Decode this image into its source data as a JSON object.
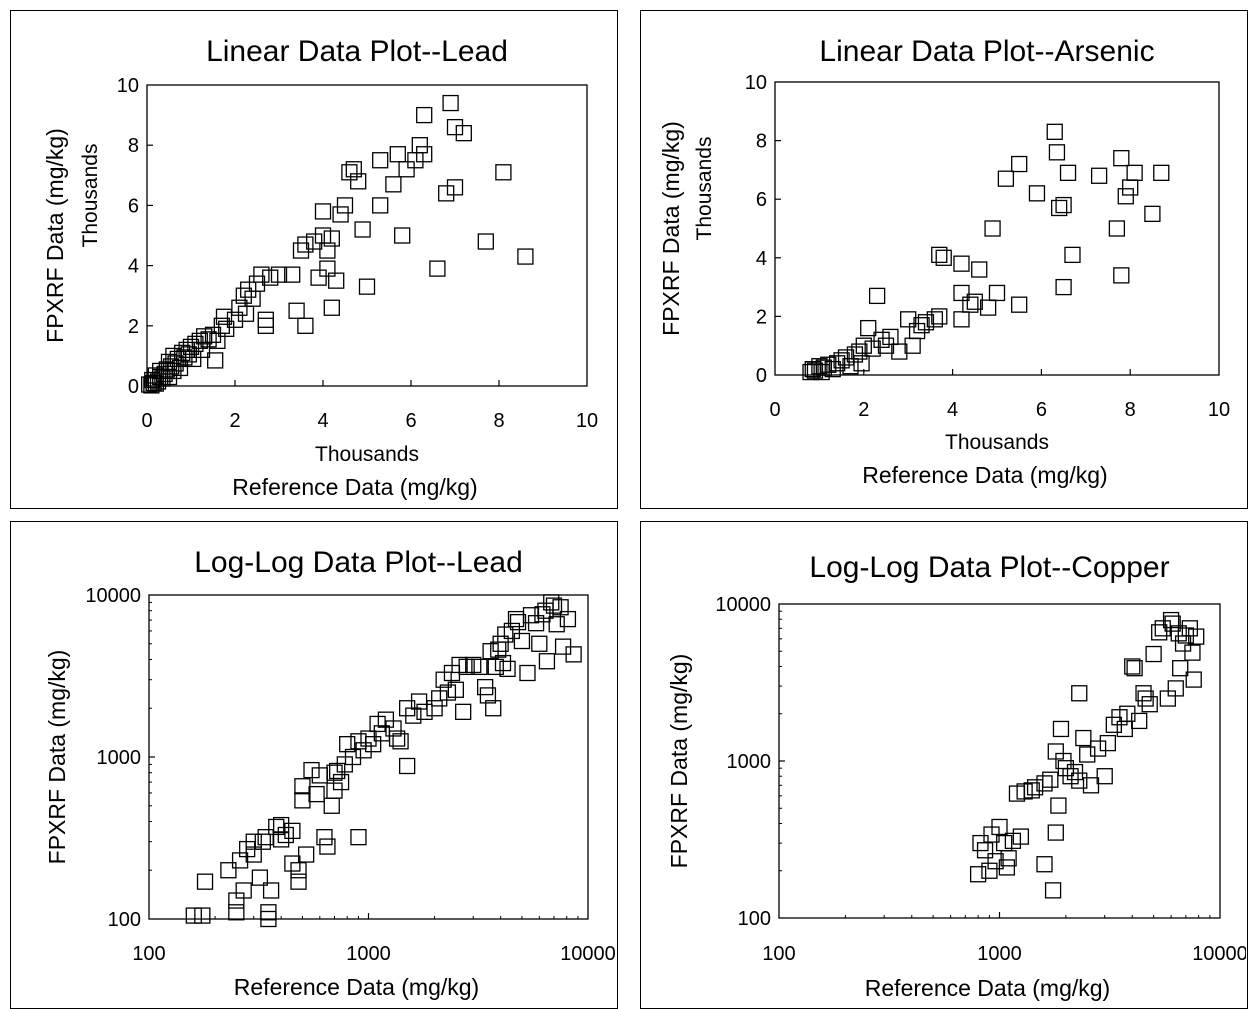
{
  "chart_data": [
    {
      "type": "scatter",
      "title": "Linear Data Plot--Lead",
      "xlabel": "Reference Data (mg/kg)",
      "xunit": "Thousands",
      "ylabel": "FPXRF Data (mg/kg)",
      "yunit": "Thousands",
      "xscale": "linear",
      "yscale": "linear",
      "xlim": [
        0,
        10
      ],
      "ylim": [
        0,
        10
      ],
      "xticks": [
        "0",
        "2",
        "4",
        "6",
        "8",
        "10"
      ],
      "yticks": [
        "0",
        "2",
        "4",
        "6",
        "8",
        "10"
      ],
      "marker": "open-square",
      "grid": false,
      "points": [
        [
          0.05,
          0.05
        ],
        [
          0.1,
          0.02
        ],
        [
          0.15,
          0.1
        ],
        [
          0.2,
          0.08
        ],
        [
          0.12,
          0.2
        ],
        [
          0.25,
          0.15
        ],
        [
          0.3,
          0.3
        ],
        [
          0.2,
          0.35
        ],
        [
          0.35,
          0.25
        ],
        [
          0.4,
          0.4
        ],
        [
          0.3,
          0.5
        ],
        [
          0.45,
          0.55
        ],
        [
          0.5,
          0.3
        ],
        [
          0.55,
          0.65
        ],
        [
          0.6,
          0.5
        ],
        [
          0.5,
          0.8
        ],
        [
          0.65,
          0.75
        ],
        [
          0.7,
          0.9
        ],
        [
          0.6,
          1.0
        ],
        [
          0.75,
          0.6
        ],
        [
          0.8,
          1.1
        ],
        [
          0.85,
          0.95
        ],
        [
          0.9,
          1.2
        ],
        [
          0.95,
          1.05
        ],
        [
          1.0,
          1.3
        ],
        [
          1.05,
          0.9
        ],
        [
          1.1,
          1.4
        ],
        [
          1.2,
          1.5
        ],
        [
          1.25,
          1.2
        ],
        [
          1.3,
          1.65
        ],
        [
          1.4,
          1.55
        ],
        [
          1.5,
          1.7
        ],
        [
          1.55,
          0.85
        ],
        [
          1.6,
          1.5
        ],
        [
          1.7,
          2.0
        ],
        [
          1.75,
          2.3
        ],
        [
          1.8,
          1.9
        ],
        [
          2.0,
          2.2
        ],
        [
          2.1,
          2.6
        ],
        [
          2.2,
          3.0
        ],
        [
          2.25,
          2.4
        ],
        [
          2.3,
          3.2
        ],
        [
          2.4,
          2.9
        ],
        [
          2.5,
          3.4
        ],
        [
          2.6,
          3.7
        ],
        [
          2.7,
          2.0
        ],
        [
          2.7,
          2.2
        ],
        [
          2.8,
          3.6
        ],
        [
          3.0,
          3.7
        ],
        [
          3.3,
          3.7
        ],
        [
          3.4,
          2.5
        ],
        [
          3.5,
          4.5
        ],
        [
          3.6,
          4.7
        ],
        [
          3.6,
          2.0
        ],
        [
          3.8,
          4.8
        ],
        [
          3.9,
          3.6
        ],
        [
          4.0,
          5.0
        ],
        [
          4.0,
          5.8
        ],
        [
          4.1,
          4.5
        ],
        [
          4.1,
          3.9
        ],
        [
          4.2,
          4.9
        ],
        [
          4.2,
          2.6
        ],
        [
          4.3,
          3.5
        ],
        [
          4.4,
          5.7
        ],
        [
          4.5,
          6.0
        ],
        [
          4.6,
          7.1
        ],
        [
          4.7,
          7.2
        ],
        [
          4.8,
          6.8
        ],
        [
          4.9,
          5.2
        ],
        [
          5.0,
          3.3
        ],
        [
          5.3,
          7.5
        ],
        [
          5.3,
          6.0
        ],
        [
          5.6,
          6.7
        ],
        [
          5.7,
          7.7
        ],
        [
          5.8,
          5.0
        ],
        [
          5.9,
          7.2
        ],
        [
          6.1,
          7.5
        ],
        [
          6.2,
          8.0
        ],
        [
          6.3,
          7.7
        ],
        [
          6.3,
          9.0
        ],
        [
          6.6,
          3.9
        ],
        [
          6.8,
          6.4
        ],
        [
          6.9,
          9.4
        ],
        [
          7.0,
          8.6
        ],
        [
          7.0,
          6.6
        ],
        [
          7.2,
          8.4
        ],
        [
          7.7,
          4.8
        ],
        [
          8.1,
          7.1
        ],
        [
          8.6,
          4.3
        ]
      ]
    },
    {
      "type": "scatter",
      "title": "Linear Data Plot--Arsenic",
      "xlabel": "Reference Data (mg/kg)",
      "xunit": "Thousands",
      "ylabel": "FPXRF Data (mg/kg)",
      "yunit": "Thousands",
      "xscale": "linear",
      "yscale": "linear",
      "xlim": [
        0,
        10
      ],
      "ylim": [
        0,
        10
      ],
      "xticks": [
        "0",
        "2",
        "4",
        "6",
        "8",
        "10"
      ],
      "yticks": [
        "0",
        "2",
        "4",
        "6",
        "8",
        "10"
      ],
      "marker": "open-square",
      "grid": false,
      "points": [
        [
          0.8,
          0.1
        ],
        [
          0.85,
          0.2
        ],
        [
          0.9,
          0.15
        ],
        [
          1.0,
          0.3
        ],
        [
          1.05,
          0.1
        ],
        [
          1.1,
          0.25
        ],
        [
          1.2,
          0.35
        ],
        [
          1.3,
          0.2
        ],
        [
          1.4,
          0.4
        ],
        [
          1.5,
          0.5
        ],
        [
          1.6,
          0.6
        ],
        [
          1.7,
          0.3
        ],
        [
          1.8,
          0.7
        ],
        [
          1.9,
          0.8
        ],
        [
          1.95,
          0.4
        ],
        [
          2.0,
          1.0
        ],
        [
          2.1,
          1.6
        ],
        [
          2.2,
          0.9
        ],
        [
          2.3,
          2.7
        ],
        [
          2.4,
          1.2
        ],
        [
          2.5,
          1.0
        ],
        [
          2.6,
          1.3
        ],
        [
          2.8,
          0.8
        ],
        [
          3.0,
          1.9
        ],
        [
          3.1,
          1.0
        ],
        [
          3.2,
          1.5
        ],
        [
          3.3,
          1.7
        ],
        [
          3.4,
          1.8
        ],
        [
          3.6,
          1.9
        ],
        [
          3.7,
          2.0
        ],
        [
          3.7,
          4.1
        ],
        [
          3.8,
          4.0
        ],
        [
          4.2,
          1.9
        ],
        [
          4.2,
          2.8
        ],
        [
          4.2,
          3.8
        ],
        [
          4.4,
          2.4
        ],
        [
          4.5,
          2.5
        ],
        [
          4.6,
          3.6
        ],
        [
          4.8,
          2.3
        ],
        [
          4.9,
          5.0
        ],
        [
          5.0,
          2.8
        ],
        [
          5.2,
          6.7
        ],
        [
          5.5,
          7.2
        ],
        [
          5.5,
          2.4
        ],
        [
          5.9,
          6.2
        ],
        [
          6.3,
          8.3
        ],
        [
          6.35,
          7.6
        ],
        [
          6.4,
          5.7
        ],
        [
          6.5,
          5.8
        ],
        [
          6.5,
          3.0
        ],
        [
          6.6,
          6.9
        ],
        [
          6.7,
          4.1
        ],
        [
          7.3,
          6.8
        ],
        [
          7.7,
          5.0
        ],
        [
          7.8,
          3.4
        ],
        [
          7.8,
          7.4
        ],
        [
          7.9,
          6.1
        ],
        [
          8.0,
          6.4
        ],
        [
          8.1,
          6.9
        ],
        [
          8.5,
          5.5
        ],
        [
          8.7,
          6.9
        ]
      ]
    },
    {
      "type": "scatter",
      "title": "Log-Log Data Plot--Lead",
      "xlabel": "Reference Data (mg/kg)",
      "ylabel": "FPXRF Data (mg/kg)",
      "xscale": "log",
      "yscale": "log",
      "xlim": [
        100,
        10000
      ],
      "ylim": [
        100,
        10000
      ],
      "xticks": [
        "100",
        "1000",
        "10000"
      ],
      "yticks": [
        "100",
        "1000",
        "10000"
      ],
      "marker": "open-square",
      "grid": false,
      "points": [
        [
          160,
          105
        ],
        [
          175,
          105
        ],
        [
          180,
          170
        ],
        [
          230,
          200
        ],
        [
          250,
          130
        ],
        [
          250,
          110
        ],
        [
          260,
          230
        ],
        [
          270,
          150
        ],
        [
          280,
          270
        ],
        [
          300,
          250
        ],
        [
          300,
          300
        ],
        [
          320,
          180
        ],
        [
          330,
          300
        ],
        [
          340,
          320
        ],
        [
          350,
          100
        ],
        [
          350,
          110
        ],
        [
          360,
          150
        ],
        [
          380,
          370
        ],
        [
          400,
          310
        ],
        [
          400,
          380
        ],
        [
          420,
          330
        ],
        [
          450,
          220
        ],
        [
          450,
          350
        ],
        [
          480,
          170
        ],
        [
          480,
          200
        ],
        [
          500,
          540
        ],
        [
          500,
          660
        ],
        [
          520,
          250
        ],
        [
          550,
          830
        ],
        [
          580,
          590
        ],
        [
          600,
          770
        ],
        [
          630,
          320
        ],
        [
          650,
          280
        ],
        [
          680,
          500
        ],
        [
          700,
          620
        ],
        [
          700,
          800
        ],
        [
          720,
          820
        ],
        [
          750,
          700
        ],
        [
          780,
          900
        ],
        [
          800,
          1200
        ],
        [
          850,
          1000
        ],
        [
          900,
          1250
        ],
        [
          900,
          320
        ],
        [
          950,
          1100
        ],
        [
          1000,
          1300
        ],
        [
          1050,
          1200
        ],
        [
          1100,
          1600
        ],
        [
          1150,
          1400
        ],
        [
          1200,
          1700
        ],
        [
          1300,
          1500
        ],
        [
          1350,
          1300
        ],
        [
          1400,
          1250
        ],
        [
          1500,
          2000
        ],
        [
          1500,
          880
        ],
        [
          1600,
          1800
        ],
        [
          1700,
          2200
        ],
        [
          1800,
          1900
        ],
        [
          2000,
          2000
        ],
        [
          2100,
          2300
        ],
        [
          2200,
          3000
        ],
        [
          2300,
          2500
        ],
        [
          2400,
          3300
        ],
        [
          2500,
          2600
        ],
        [
          2600,
          3700
        ],
        [
          2700,
          1900
        ],
        [
          2800,
          3600
        ],
        [
          3000,
          3700
        ],
        [
          3200,
          3600
        ],
        [
          3400,
          2700
        ],
        [
          3500,
          2400
        ],
        [
          3600,
          4500
        ],
        [
          3700,
          2000
        ],
        [
          3800,
          3600
        ],
        [
          3900,
          4600
        ],
        [
          4000,
          5000
        ],
        [
          4100,
          3800
        ],
        [
          4200,
          5700
        ],
        [
          4300,
          3500
        ],
        [
          4500,
          6000
        ],
        [
          4700,
          7100
        ],
        [
          4800,
          6800
        ],
        [
          5000,
          5200
        ],
        [
          5300,
          3300
        ],
        [
          5500,
          7500
        ],
        [
          5800,
          6700
        ],
        [
          6000,
          5000
        ],
        [
          6200,
          7600
        ],
        [
          6400,
          8000
        ],
        [
          6500,
          3900
        ],
        [
          6800,
          9000
        ],
        [
          7000,
          8600
        ],
        [
          7200,
          6600
        ],
        [
          7500,
          8400
        ],
        [
          7700,
          4800
        ],
        [
          8100,
          7100
        ],
        [
          8600,
          4300
        ]
      ]
    },
    {
      "type": "scatter",
      "title": "Log-Log Data Plot--Copper",
      "xlabel": "Reference Data (mg/kg)",
      "ylabel": "FPXRF Data (mg/kg)",
      "xscale": "log",
      "yscale": "log",
      "xlim": [
        100,
        10000
      ],
      "ylim": [
        100,
        10000
      ],
      "xticks": [
        "100",
        "1000",
        "10000"
      ],
      "yticks": [
        "100",
        "1000",
        "10000"
      ],
      "marker": "open-square",
      "grid": false,
      "points": [
        [
          800,
          190
        ],
        [
          820,
          300
        ],
        [
          860,
          270
        ],
        [
          900,
          200
        ],
        [
          920,
          340
        ],
        [
          960,
          230
        ],
        [
          1000,
          380
        ],
        [
          1050,
          300
        ],
        [
          1080,
          210
        ],
        [
          1100,
          240
        ],
        [
          1150,
          310
        ],
        [
          1200,
          620
        ],
        [
          1250,
          330
        ],
        [
          1300,
          640
        ],
        [
          1400,
          650
        ],
        [
          1450,
          680
        ],
        [
          1600,
          220
        ],
        [
          1600,
          720
        ],
        [
          1700,
          760
        ],
        [
          1750,
          150
        ],
        [
          1800,
          350
        ],
        [
          1800,
          1150
        ],
        [
          1850,
          520
        ],
        [
          1900,
          1600
        ],
        [
          1950,
          1000
        ],
        [
          2000,
          900
        ],
        [
          2100,
          800
        ],
        [
          2200,
          850
        ],
        [
          2300,
          2700
        ],
        [
          2300,
          750
        ],
        [
          2400,
          1400
        ],
        [
          2500,
          1100
        ],
        [
          2600,
          700
        ],
        [
          2800,
          1200
        ],
        [
          3000,
          800
        ],
        [
          3100,
          1300
        ],
        [
          3300,
          1700
        ],
        [
          3500,
          1900
        ],
        [
          3700,
          1600
        ],
        [
          3800,
          2000
        ],
        [
          4000,
          4000
        ],
        [
          4100,
          3900
        ],
        [
          4300,
          1800
        ],
        [
          4500,
          2700
        ],
        [
          4600,
          2500
        ],
        [
          4800,
          2300
        ],
        [
          5000,
          4800
        ],
        [
          5300,
          6600
        ],
        [
          5500,
          7000
        ],
        [
          5800,
          2500
        ],
        [
          6000,
          7900
        ],
        [
          6100,
          7500
        ],
        [
          6300,
          2900
        ],
        [
          6500,
          6500
        ],
        [
          6600,
          3900
        ],
        [
          6800,
          5600
        ],
        [
          7000,
          6300
        ],
        [
          7300,
          7000
        ],
        [
          7500,
          4900
        ],
        [
          7600,
          3300
        ],
        [
          7800,
          6200
        ]
      ]
    }
  ]
}
